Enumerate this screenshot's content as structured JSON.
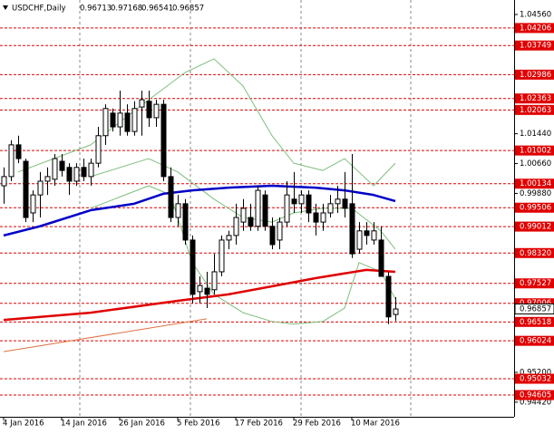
{
  "chart_data": {
    "type": "candlestick",
    "title": "USDCHF,Daily",
    "categories": [
      "4 Jan 2016",
      null,
      null,
      null,
      null,
      null,
      null,
      null,
      "14 Jan 2016",
      null,
      null,
      null,
      null,
      null,
      null,
      null,
      "26 Jan 2016",
      null,
      null,
      null,
      null,
      null,
      null,
      null,
      "5 Feb 2016",
      null,
      null,
      null,
      null,
      null,
      null,
      null,
      "17 Feb 2016",
      null,
      null,
      null,
      null,
      null,
      null,
      null,
      "29 Feb 2016",
      null,
      null,
      null,
      null,
      null,
      null,
      null,
      "10 Mar 2016",
      null,
      null,
      null,
      null,
      null,
      null
    ],
    "open": [
      1.0008,
      1.0032,
      1.0115,
      1.0072,
      0.9937,
      0.9984,
      1.002,
      1.0025,
      1.0072,
      1.0056,
      1.002,
      1.0056,
      1.0032,
      1.0067,
      1.0139,
      1.0198,
      1.0162,
      1.0198,
      1.015,
      1.0214,
      1.0229,
      1.0186,
      1.0221,
      1.0032,
      0.9925,
      0.9961,
      0.9866,
      0.9731,
      0.974,
      0.9736,
      0.9783,
      0.9866,
      0.9878,
      0.9913,
      0.9925,
      0.9902,
      0.9984,
      0.9902,
      0.9866,
      0.9913,
      0.9973,
      0.9961,
      0.9984,
      0.9937,
      0.9913,
      0.9937,
      0.9961,
      0.9973,
      0.9961,
      0.9842,
      0.989,
      0.9866,
      0.9866,
      0.9771,
      0.96713
    ],
    "high": [
      1.0056,
      1.0127,
      1.0139,
      1.0079,
      0.9996,
      1.0044,
      1.0056,
      1.0091,
      1.0091,
      1.0067,
      1.0067,
      1.0079,
      1.0079,
      1.0162,
      1.0221,
      1.021,
      1.0257,
      1.0221,
      1.0229,
      1.0257,
      1.0257,
      1.0233,
      1.0233,
      1.0056,
      0.9984,
      0.9973,
      0.9878,
      0.9771,
      0.9783,
      0.983,
      0.9878,
      0.989,
      0.9961,
      0.9973,
      0.9961,
      1.0008,
      0.9996,
      0.9925,
      0.9925,
      1.002,
      1.0044,
      0.9996,
      0.9996,
      0.9961,
      0.9961,
      0.9984,
      1.0008,
      1.0044,
      1.0091,
      0.9913,
      0.9913,
      0.9913,
      0.9902,
      0.9783,
      0.97168
    ],
    "low": [
      0.9961,
      1.002,
      1.0067,
      0.9913,
      0.9913,
      0.9925,
      0.9984,
      1.0008,
      1.0032,
      0.9984,
      1.0008,
      1.002,
      1.0008,
      1.0056,
      1.0115,
      1.015,
      1.0139,
      1.0139,
      1.0139,
      1.0139,
      1.0162,
      1.0162,
      1.002,
      0.9913,
      0.9902,
      0.9854,
      0.97,
      0.97,
      0.9688,
      0.9724,
      0.9771,
      0.9842,
      0.9854,
      0.989,
      0.989,
      0.989,
      0.989,
      0.9842,
      0.9842,
      0.9902,
      0.9937,
      0.9937,
      0.9913,
      0.9878,
      0.989,
      0.9925,
      0.9937,
      0.9925,
      0.9819,
      0.983,
      0.9854,
      0.9854,
      0.9771,
      0.9646,
      0.96541
    ],
    "close": [
      1.0032,
      1.0115,
      1.0079,
      0.9925,
      0.9984,
      1.002,
      1.0032,
      1.0079,
      1.0048,
      1.002,
      1.0056,
      1.0032,
      1.0067,
      1.0139,
      1.021,
      1.0162,
      1.0198,
      1.015,
      1.021,
      1.0233,
      1.0186,
      1.0221,
      1.0032,
      0.9925,
      0.9961,
      0.9866,
      0.9724,
      0.9747,
      0.9724,
      0.9783,
      0.9866,
      0.9878,
      0.9925,
      0.9949,
      0.9902,
      0.9996,
      0.9902,
      0.9854,
      0.9913,
      0.9984,
      0.9961,
      0.9984,
      0.9937,
      0.9913,
      0.9937,
      0.9961,
      0.9973,
      0.9949,
      0.983,
      0.989,
      0.9878,
      0.989,
      0.9771,
      0.9665,
      0.96857
    ],
    "indicators": [
      {
        "color": "#7dbf7d",
        "width": 1,
        "x": [
          2,
          12,
          20,
          25,
          29,
          33,
          37,
          40,
          44,
          47,
          51,
          54
        ],
        "values": [
          1.0044,
          1.0115,
          1.0233,
          1.0304,
          1.034,
          1.0269,
          1.0139,
          1.0067,
          1.0048,
          1.0079,
          1.0008,
          1.0067
        ]
      },
      {
        "color": "#7dbf7d",
        "width": 1,
        "x": [
          12,
          20,
          24,
          29,
          33,
          37,
          40,
          44,
          48,
          52,
          54
        ],
        "values": [
          1.0032,
          1.0079,
          1.0044,
          0.9973,
          0.9925,
          0.9913,
          0.9937,
          0.9949,
          0.9949,
          0.989,
          0.9842
        ]
      },
      {
        "color": "#7dbf7d",
        "width": 1,
        "x": [
          12,
          20,
          23,
          26,
          29,
          33,
          37,
          40,
          44,
          47,
          49,
          52,
          54
        ],
        "values": [
          0.9949,
          1.0008,
          0.9984,
          0.9807,
          0.9724,
          0.9676,
          0.9653,
          0.9646,
          0.9653,
          0.9688,
          0.9807,
          0.9783,
          0.9712
        ]
      },
      {
        "color": "#0000c8",
        "width": 2.5,
        "x": [
          0,
          5,
          12,
          18,
          22,
          26,
          31,
          37,
          43,
          47,
          51,
          54
        ],
        "values": [
          0.9878,
          0.9902,
          0.9944,
          0.9961,
          0.9987,
          0.9996,
          1.0003,
          1.0008,
          1.0003,
          0.9996,
          0.9984,
          0.9968
        ]
      },
      {
        "color": "#e00000",
        "width": 2.5,
        "x": [
          0,
          12,
          24,
          31,
          37,
          43,
          50,
          54
        ],
        "values": [
          0.9657,
          0.9676,
          0.9707,
          0.9724,
          0.9745,
          0.97664,
          0.9788,
          0.9783
        ]
      },
      {
        "color": "#e07040",
        "width": 1,
        "x": [
          0,
          28
        ],
        "values": [
          0.9574,
          0.966
        ]
      }
    ],
    "ylim": [
      0.94037,
      1.04939
    ],
    "yticks": [
      {
        "value": 1.0456,
        "label": "1.04560"
      },
      {
        "value": 1.0144,
        "label": "1.01440"
      },
      {
        "value": 1.0066,
        "label": "1.00660"
      },
      {
        "value": 0.9988,
        "label": "0.99880"
      },
      {
        "value": 0.952,
        "label": "0.95200"
      },
      {
        "value": 0.9442,
        "label": "0.94420"
      }
    ],
    "levels": [
      1.04206,
      1.03749,
      1.02986,
      1.02363,
      1.02063,
      1.01002,
      1.00134,
      0.99506,
      0.99012,
      {
        "value": 0.9832,
        "label": "0.98320"
      },
      0.97527,
      0.97006,
      0.96518,
      0.96024,
      0.95032,
      0.94605
    ],
    "level_color": "#e00000",
    "up_color": "#ffffff",
    "down_color": "#000000"
  }
}
